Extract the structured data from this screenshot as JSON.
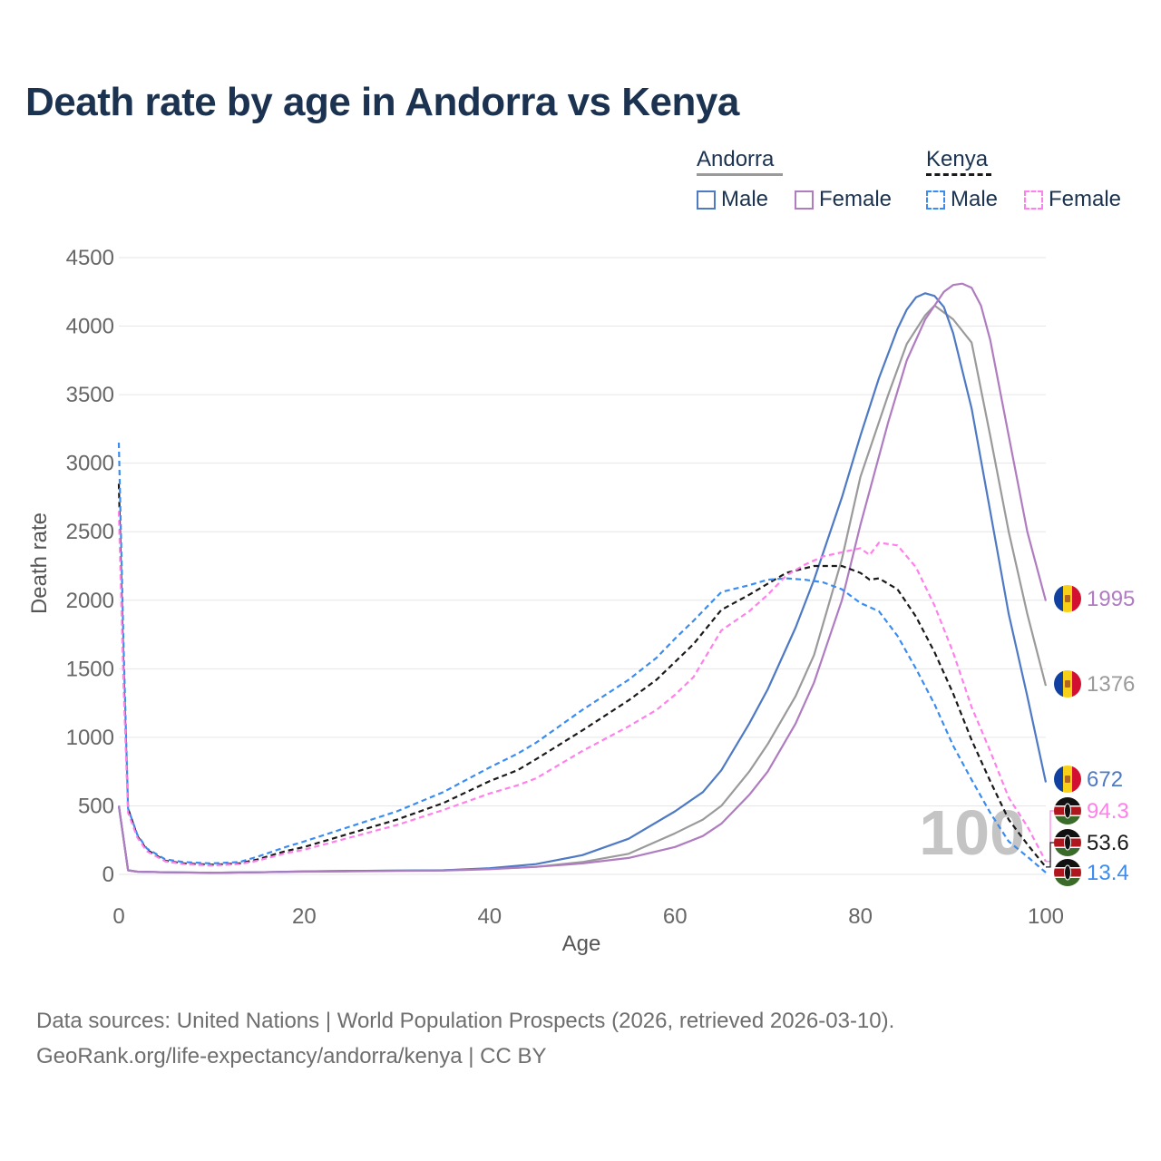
{
  "title": "Death rate by age in Andorra vs Kenya",
  "legend": {
    "groups": [
      {
        "label": "Andorra",
        "items": [
          "Male",
          "Female"
        ]
      },
      {
        "label": "Kenya",
        "items": [
          "Male",
          "Female"
        ]
      }
    ]
  },
  "footer": {
    "line1": "Data sources: United Nations | World Population Prospects (2026, retrieved 2026-03-10).",
    "line2": "GeoRank.org/life-expectancy/andorra/kenya | CC BY"
  },
  "colors": {
    "andorra_male": "#4e79c4",
    "andorra_female": "#b07cc0",
    "andorra_total": "#9a9a9a",
    "kenya_male": "#3b8cf0",
    "kenya_female": "#ff80ea",
    "kenya_total": "#1a1a1a",
    "title": "#1b3350"
  },
  "chart_data": {
    "type": "line",
    "xlabel": "Age",
    "ylabel": "Death rate",
    "xlim": [
      0,
      100
    ],
    "ylim": [
      0,
      4500
    ],
    "x_ticks": [
      0,
      20,
      40,
      60,
      80,
      100
    ],
    "y_ticks": [
      0,
      500,
      1000,
      1500,
      2000,
      2500,
      3000,
      3500,
      4000,
      4500
    ],
    "year_watermark": "100",
    "series": [
      {
        "key": "andorra_total",
        "name": "Andorra",
        "style": "solid",
        "x": [
          0,
          1,
          2,
          5,
          10,
          15,
          20,
          25,
          30,
          35,
          40,
          45,
          50,
          55,
          60,
          63,
          65,
          68,
          70,
          73,
          75,
          78,
          80,
          83,
          85,
          87,
          88,
          90,
          92,
          94,
          96,
          98,
          100
        ],
        "y": [
          500,
          30,
          20,
          15,
          12,
          15,
          22,
          25,
          27,
          30,
          40,
          55,
          90,
          150,
          300,
          400,
          500,
          750,
          950,
          1300,
          1600,
          2300,
          2900,
          3500,
          3870,
          4080,
          4150,
          4050,
          3880,
          3200,
          2500,
          1900,
          1376
        ]
      },
      {
        "key": "andorra_male",
        "name": "Andorra Male",
        "style": "solid",
        "x": [
          0,
          1,
          2,
          5,
          10,
          15,
          20,
          25,
          30,
          35,
          40,
          45,
          50,
          55,
          60,
          63,
          65,
          68,
          70,
          73,
          75,
          78,
          80,
          82,
          84,
          85,
          86,
          87,
          88,
          89,
          90,
          92,
          94,
          96,
          98,
          100
        ],
        "y": [
          500,
          30,
          20,
          15,
          12,
          15,
          22,
          25,
          27,
          30,
          45,
          75,
          140,
          260,
          460,
          600,
          760,
          1100,
          1350,
          1800,
          2150,
          2750,
          3200,
          3620,
          3980,
          4120,
          4210,
          4240,
          4220,
          4140,
          3950,
          3400,
          2650,
          1900,
          1300,
          672
        ]
      },
      {
        "key": "andorra_female",
        "name": "Andorra Female",
        "style": "solid",
        "x": [
          0,
          1,
          2,
          5,
          10,
          15,
          20,
          25,
          30,
          35,
          40,
          45,
          50,
          55,
          60,
          63,
          65,
          68,
          70,
          73,
          75,
          78,
          80,
          83,
          85,
          87,
          89,
          90,
          91,
          92,
          93,
          94,
          96,
          98,
          100
        ],
        "y": [
          500,
          30,
          20,
          15,
          12,
          15,
          20,
          22,
          25,
          28,
          38,
          55,
          80,
          120,
          200,
          280,
          370,
          580,
          750,
          1100,
          1400,
          2000,
          2550,
          3300,
          3750,
          4050,
          4250,
          4300,
          4310,
          4280,
          4150,
          3900,
          3200,
          2500,
          1995
        ]
      },
      {
        "key": "kenya_total",
        "name": "Kenya",
        "style": "dashed",
        "x": [
          0,
          0.5,
          1,
          2,
          3,
          5,
          7,
          10,
          13,
          15,
          18,
          20,
          25,
          30,
          35,
          40,
          43,
          45,
          50,
          55,
          58,
          60,
          62,
          65,
          68,
          70,
          72,
          75,
          77,
          78,
          80,
          81,
          82,
          84,
          86,
          88,
          90,
          92,
          94,
          96,
          98,
          100
        ],
        "y": [
          2850,
          1500,
          480,
          280,
          180,
          100,
          80,
          70,
          80,
          110,
          170,
          200,
          300,
          400,
          520,
          680,
          760,
          840,
          1050,
          1270,
          1420,
          1550,
          1680,
          1930,
          2040,
          2120,
          2200,
          2250,
          2250,
          2250,
          2200,
          2150,
          2160,
          2080,
          1880,
          1620,
          1320,
          980,
          680,
          400,
          220,
          53.6
        ]
      },
      {
        "key": "kenya_male",
        "name": "Kenya Male",
        "style": "dashed",
        "x": [
          0,
          0.5,
          1,
          2,
          3,
          5,
          7,
          10,
          13,
          15,
          18,
          20,
          25,
          30,
          35,
          40,
          43,
          45,
          50,
          55,
          58,
          60,
          62,
          65,
          68,
          70,
          72,
          74,
          76,
          78,
          80,
          82,
          84,
          86,
          88,
          90,
          92,
          94,
          96,
          98,
          100
        ],
        "y": [
          3150,
          1700,
          480,
          290,
          190,
          110,
          90,
          80,
          90,
          130,
          200,
          240,
          350,
          460,
          600,
          780,
          880,
          960,
          1200,
          1420,
          1580,
          1720,
          1850,
          2060,
          2110,
          2150,
          2160,
          2150,
          2130,
          2080,
          1980,
          1920,
          1740,
          1500,
          1240,
          940,
          690,
          450,
          240,
          130,
          13.4
        ]
      },
      {
        "key": "kenya_female",
        "name": "Kenya Female",
        "style": "dashed",
        "x": [
          0,
          0.5,
          1,
          2,
          3,
          5,
          7,
          10,
          13,
          15,
          18,
          20,
          25,
          30,
          35,
          40,
          43,
          45,
          50,
          55,
          58,
          60,
          62,
          65,
          68,
          70,
          72,
          74,
          76,
          78,
          80,
          81,
          82,
          84,
          86,
          88,
          90,
          92,
          94,
          96,
          98,
          100
        ],
        "y": [
          2650,
          1400,
          450,
          270,
          170,
          95,
          75,
          65,
          75,
          100,
          155,
          180,
          270,
          360,
          470,
          590,
          650,
          700,
          900,
          1080,
          1200,
          1310,
          1440,
          1780,
          1920,
          2040,
          2180,
          2260,
          2320,
          2350,
          2380,
          2330,
          2420,
          2400,
          2240,
          1960,
          1620,
          1220,
          900,
          560,
          350,
          94.3
        ]
      }
    ],
    "end_labels": [
      {
        "key": "andorra_female",
        "value": "1995",
        "flag": "andorra"
      },
      {
        "key": "andorra_total",
        "value": "1376",
        "flag": "andorra"
      },
      {
        "key": "andorra_male",
        "value": "672",
        "flag": "andorra"
      },
      {
        "key": "kenya_female",
        "value": "94.3",
        "flag": "kenya"
      },
      {
        "key": "kenya_total",
        "value": "53.6",
        "flag": "kenya"
      },
      {
        "key": "kenya_male",
        "value": "13.4",
        "flag": "kenya"
      }
    ]
  }
}
